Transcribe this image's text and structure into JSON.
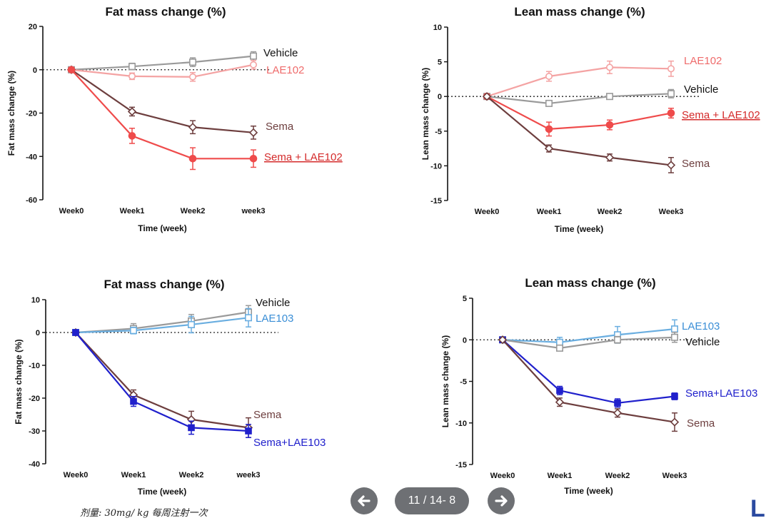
{
  "chart_data": [
    {
      "type": "line",
      "title": "Fat mass change (%)",
      "xlabel": "Time (week)",
      "ylabel": "Fat mass change (%)",
      "categories": [
        "Week0",
        "Week1",
        "Week2",
        "week3"
      ],
      "ylim": [
        -60,
        20
      ],
      "yticks": [
        20,
        0,
        -20,
        -40,
        -60
      ],
      "series": [
        {
          "name": "Vehicle",
          "marker": "square-open",
          "color": "#9a9a9a",
          "label_color": "#111111",
          "values": [
            0,
            1.5,
            3.5,
            6.3
          ],
          "errors": [
            0,
            1.5,
            2.0,
            2.0
          ]
        },
        {
          "name": "LAE102",
          "marker": "circle-open",
          "color": "#f4a3a3",
          "label_color": "#ef6b6b",
          "values": [
            0,
            -3.0,
            -3.3,
            2.3
          ],
          "errors": [
            0,
            1.5,
            2.0,
            2.0
          ]
        },
        {
          "name": "Sema",
          "marker": "diamond-open",
          "color": "#6d3e3e",
          "label_color": "#6d3e3e",
          "values": [
            0,
            -19.3,
            -26.5,
            -29.0
          ],
          "errors": [
            0,
            2.0,
            3.0,
            3.0
          ]
        },
        {
          "name": "Sema + LAE102",
          "marker": "circle-filled",
          "color": "#ef4b4b",
          "label_color": "#d42a2a",
          "underline": true,
          "values": [
            0,
            -30.5,
            -41.0,
            -41.0
          ],
          "errors": [
            0,
            3.5,
            5.0,
            4.0
          ]
        }
      ]
    },
    {
      "type": "line",
      "title": "Lean mass change (%)",
      "xlabel": "Time (week)",
      "ylabel": "Lean mass change (%)",
      "categories": [
        "Week0",
        "Week1",
        "Week2",
        "Week3"
      ],
      "ylim": [
        -15,
        10
      ],
      "yticks": [
        10,
        5,
        0,
        -5,
        -10,
        -15
      ],
      "series": [
        {
          "name": "LAE102",
          "marker": "circle-open",
          "color": "#f4a3a3",
          "label_color": "#ef6b6b",
          "values": [
            0,
            2.9,
            4.2,
            4.0
          ],
          "errors": [
            0,
            0.7,
            0.9,
            1.1
          ]
        },
        {
          "name": "Vehicle",
          "marker": "square-open",
          "color": "#9a9a9a",
          "label_color": "#111111",
          "values": [
            0,
            -1.0,
            0,
            0.4
          ],
          "errors": [
            0,
            0.3,
            0.3,
            0.6
          ]
        },
        {
          "name": "Sema + LAE102",
          "marker": "circle-filled",
          "color": "#ef4b4b",
          "label_color": "#d42a2a",
          "underline": true,
          "values": [
            0,
            -4.7,
            -4.1,
            -2.4
          ],
          "errors": [
            0,
            1.0,
            0.7,
            0.7
          ]
        },
        {
          "name": "Sema",
          "marker": "diamond-open",
          "color": "#6d3e3e",
          "label_color": "#6d3e3e",
          "values": [
            0,
            -7.5,
            -8.8,
            -9.9
          ],
          "errors": [
            0,
            0.5,
            0.5,
            1.1
          ]
        }
      ]
    },
    {
      "type": "line",
      "title": "Fat mass change (%)",
      "xlabel": "Time (week)",
      "ylabel": "Fat mass change (%)",
      "categories": [
        "Week0",
        "Week1",
        "Week2",
        "week3"
      ],
      "ylim": [
        -40,
        10
      ],
      "yticks": [
        10,
        0,
        -10,
        -20,
        -30,
        -40
      ],
      "series": [
        {
          "name": "Vehicle",
          "marker": "square-open",
          "color": "#9a9a9a",
          "label_color": "#111111",
          "values": [
            0,
            1.2,
            3.5,
            6.2
          ],
          "errors": [
            0,
            1.5,
            2.0,
            2.0
          ]
        },
        {
          "name": "LAE103",
          "marker": "square-open",
          "color": "#6aaee0",
          "label_color": "#3a8ed6",
          "values": [
            0,
            0.6,
            2.4,
            4.5
          ],
          "errors": [
            0,
            1.0,
            2.5,
            2.8
          ]
        },
        {
          "name": "Sema",
          "marker": "diamond-open",
          "color": "#6d3e3e",
          "label_color": "#6d3e3e",
          "values": [
            0,
            -19.0,
            -26.5,
            -29.0
          ],
          "errors": [
            0,
            1.5,
            2.5,
            3.0
          ]
        },
        {
          "name": "Sema+LAE103",
          "marker": "square-filled",
          "color": "#2020cc",
          "label_color": "#2020cc",
          "values": [
            0,
            -21.0,
            -29.0,
            -30.0
          ],
          "errors": [
            0,
            1.5,
            2.0,
            2.0
          ]
        }
      ]
    },
    {
      "type": "line",
      "title": "Lean mass change (%)",
      "xlabel": "Time (week)",
      "ylabel": "Lean mass change (%)",
      "categories": [
        "Week0",
        "Week1",
        "Week2",
        "Week3"
      ],
      "ylim": [
        -15,
        5
      ],
      "yticks": [
        5,
        0,
        -5,
        -10,
        -15
      ],
      "series": [
        {
          "name": "LAE103",
          "marker": "square-open",
          "color": "#6aaee0",
          "label_color": "#3a8ed6",
          "values": [
            0,
            -0.3,
            0.6,
            1.3
          ],
          "errors": [
            0,
            0.6,
            1.0,
            1.1
          ]
        },
        {
          "name": "Vehicle",
          "marker": "square-open",
          "color": "#9a9a9a",
          "label_color": "#111111",
          "values": [
            0,
            -1.0,
            0,
            0.3
          ],
          "errors": [
            0,
            0.3,
            0.4,
            0.6
          ]
        },
        {
          "name": "Sema+LAE103",
          "marker": "square-filled",
          "color": "#2020cc",
          "label_color": "#2020cc",
          "values": [
            0,
            -6.1,
            -7.6,
            -6.8
          ],
          "errors": [
            0,
            0.5,
            0.5,
            0.4
          ]
        },
        {
          "name": "Sema",
          "marker": "diamond-open",
          "color": "#6d3e3e",
          "label_color": "#6d3e3e",
          "values": [
            0,
            -7.5,
            -8.8,
            -9.9
          ],
          "errors": [
            0,
            0.5,
            0.5,
            1.1
          ]
        }
      ]
    }
  ],
  "footnote": "剂量: 30mg/ kg 每周注射一次",
  "nav": {
    "prev_icon": "arrow-left-icon",
    "next_icon": "arrow-right-icon",
    "page_indicator": "11 / 14- 8"
  },
  "logo_fragment": "L"
}
